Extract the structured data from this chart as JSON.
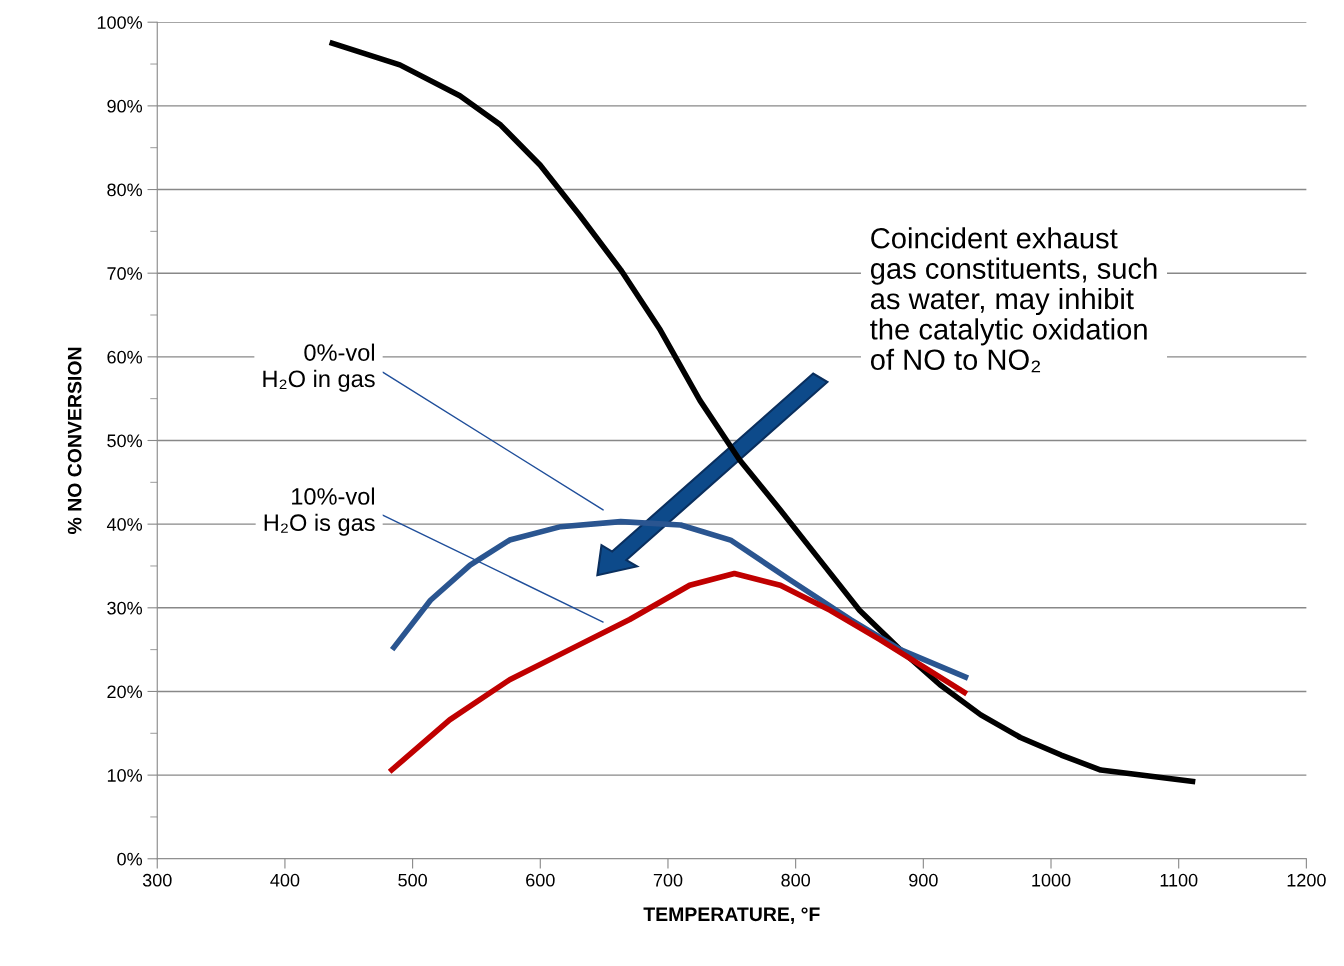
{
  "chart_data": {
    "type": "line",
    "xlabel": "TEMPERATURE, °F",
    "ylabel": "% NO CONVERSION",
    "xlim": [
      300,
      1200
    ],
    "xticks": [
      300,
      400,
      500,
      600,
      700,
      800,
      900,
      1000,
      1100,
      1200
    ],
    "ylim": [
      0,
      100
    ],
    "yticks": [
      {
        "value": 0,
        "label": "0%"
      },
      {
        "value": 5,
        "label": null
      },
      {
        "value": 10,
        "label": "10%"
      },
      {
        "value": 15,
        "label": null
      },
      {
        "value": 20,
        "label": "20%"
      },
      {
        "value": 25,
        "label": null
      },
      {
        "value": 30,
        "label": "30%"
      },
      {
        "value": 35,
        "label": null
      },
      {
        "value": 40,
        "label": "40%"
      },
      {
        "value": 45,
        "label": null
      },
      {
        "value": 50,
        "label": "50%"
      },
      {
        "value": 55,
        "label": null
      },
      {
        "value": 60,
        "label": "60%"
      },
      {
        "value": 65,
        "label": null
      },
      {
        "value": 70,
        "label": "70%"
      },
      {
        "value": 75,
        "label": null
      },
      {
        "value": 80,
        "label": "80%"
      },
      {
        "value": 85,
        "label": null
      },
      {
        "value": 90,
        "label": "90%"
      },
      {
        "value": 95,
        "label": null
      },
      {
        "value": 100,
        "label": "100%"
      }
    ],
    "grid": "y",
    "legend": false,
    "marker": "none",
    "line_style": "solid",
    "series": [
      {
        "color": "#000000",
        "x": [
          435,
          490,
          537,
          569,
          600,
          631,
          663,
          694,
          725,
          756,
          788,
          819,
          850,
          882,
          913,
          945,
          976,
          1008,
          1039,
          1113
        ],
        "values": [
          97.6,
          94.9,
          91.2,
          87.7,
          82.9,
          76.9,
          70.4,
          63.2,
          54.8,
          47.7,
          41.7,
          35.7,
          29.7,
          25.0,
          20.8,
          17.2,
          14.5,
          12.4,
          10.6,
          9.2
        ]
      },
      {
        "color": "#2a5590",
        "x": [
          484,
          514,
          545,
          576,
          616,
          663,
          710,
          749,
          796,
          843,
          882,
          935
        ],
        "values": [
          25.0,
          30.9,
          35.1,
          38.1,
          39.7,
          40.3,
          39.9,
          38.1,
          33.3,
          28.6,
          25.0,
          21.6
        ]
      },
      {
        "color": "#c00000",
        "x": [
          482,
          529,
          576,
          623,
          670,
          717,
          752,
          788,
          827,
          866,
          934
        ],
        "values": [
          10.4,
          16.6,
          21.4,
          25.0,
          28.6,
          32.7,
          34.1,
          32.7,
          29.7,
          26.2,
          19.7
        ]
      }
    ],
    "annotations": [
      "0%-vol\nH₂O in gas",
      "10%-vol\nH₂O is gas",
      "Coincident exhaust\ngas constituents, such\nas water, may inhibit\nthe catalytic oxidation\nof NO to NO₂"
    ]
  }
}
